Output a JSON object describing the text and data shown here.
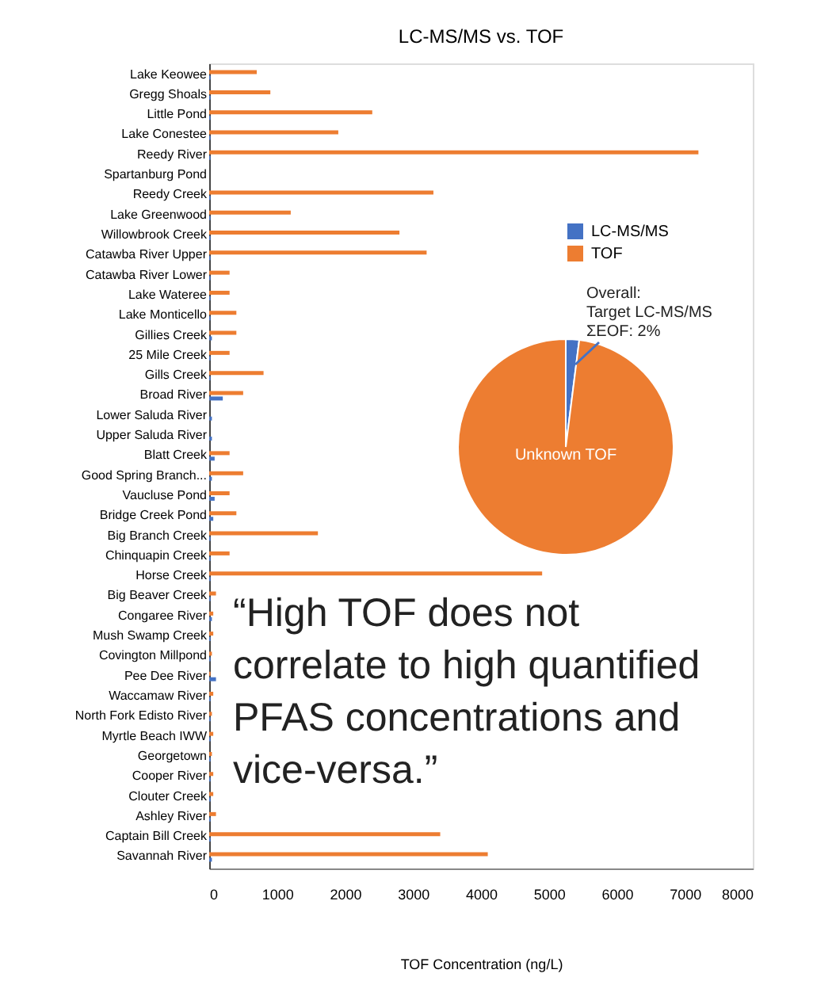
{
  "chart_data": [
    {
      "type": "bar",
      "orientation": "horizontal",
      "title": "LC-MS/MS vs. TOF",
      "xlabel": "TOF Concentration (ng/L)",
      "categories": [
        "Lake Keowee",
        "Gregg Shoals",
        "Little Pond",
        "Lake Conestee",
        "Reedy River",
        "Spartanburg Pond",
        "Reedy Creek",
        "Lake Greenwood",
        "Willowbrook Creek",
        "Catawba River Upper",
        "Catawba River Lower",
        "Lake Wateree",
        "Lake Monticello",
        "Gillies Creek",
        "25 Mile Creek",
        "Gills Creek",
        "Broad River",
        "Lower Saluda River",
        "Upper Saluda River",
        "Blatt Creek",
        "Good Spring Branch...",
        "Vaucluse Pond",
        "Bridge Creek Pond",
        "Big Branch Creek",
        "Chinquapin Creek",
        "Horse Creek",
        "Big Beaver Creek",
        "Congaree River",
        "Mush Swamp Creek",
        "Covington Millpond",
        "Pee Dee River",
        "Waccamaw River",
        "North Fork Edisto River",
        "Myrtle Beach IWW",
        "Georgetown",
        "Cooper River",
        "Clouter Creek",
        "Ashley River",
        "Captain Bill Creek",
        "Savannah River"
      ],
      "series": [
        {
          "name": "LC-MS/MS",
          "color": "#4472c4",
          "values": [
            20,
            20,
            20,
            20,
            20,
            0,
            20,
            20,
            20,
            20,
            20,
            20,
            20,
            40,
            20,
            20,
            200,
            40,
            40,
            80,
            40,
            80,
            60,
            20,
            20,
            20,
            20,
            40,
            20,
            20,
            100,
            20,
            20,
            20,
            20,
            20,
            20,
            20,
            20,
            40
          ]
        },
        {
          "name": "TOF",
          "color": "#ed7d31",
          "values": [
            700,
            900,
            2400,
            1900,
            7200,
            0,
            3300,
            1200,
            2800,
            3200,
            300,
            300,
            400,
            400,
            300,
            800,
            500,
            0,
            0,
            300,
            500,
            300,
            400,
            1600,
            300,
            4900,
            100,
            60,
            60,
            40,
            20,
            60,
            40,
            60,
            40,
            60,
            60,
            100,
            3400,
            4100
          ]
        }
      ],
      "xlim": [
        0,
        8000
      ],
      "xticks": [
        0,
        1000,
        2000,
        3000,
        4000,
        5000,
        6000,
        7000,
        8000
      ],
      "grid": false,
      "legend": "right",
      "annotations": [
        "“High TOF does not\ncorrelate to high quantified\nPFAS concentrations and\nvice-versa.”"
      ]
    },
    {
      "type": "pie",
      "categories": [
        null,
        "Unknown TOF"
      ],
      "values": [
        2,
        98
      ],
      "colors": [
        "#4472c4",
        "#ed7d31"
      ],
      "annotations": [
        "Overall:\nTarget LC-MS/MS\nΣEOF: 2%"
      ]
    }
  ]
}
